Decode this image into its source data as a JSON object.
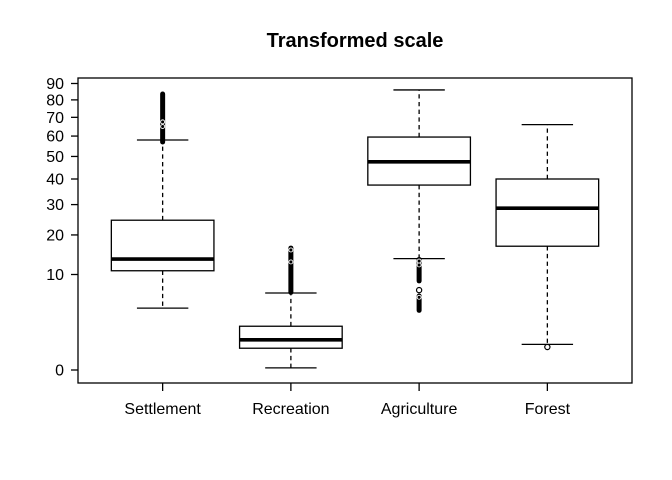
{
  "title": "Transformed scale",
  "chart_data": {
    "type": "boxplot",
    "title": "Transformed scale",
    "subtitle": "",
    "xlabel": "",
    "ylabel": "",
    "categories": [
      "Settlement",
      "Recreation",
      "Agriculture",
      "Forest"
    ],
    "y_scale": "sqrt",
    "y_ticks": [
      0,
      10,
      20,
      30,
      40,
      50,
      60,
      70,
      80,
      90
    ],
    "ylim": [
      0,
      93
    ],
    "grid": false,
    "legend": "none",
    "groups": [
      {
        "name": "Settlement",
        "whisker_low": 4.2,
        "q1": 10.8,
        "median": 13.5,
        "q3": 24.6,
        "whisker_high": 58,
        "outlier_clusters": [
          {
            "from": 57,
            "to": 83.5
          }
        ],
        "outlier_rings": [
          67.5,
          65
        ],
        "outlier_points": []
      },
      {
        "name": "Recreation",
        "whisker_low": 0.005,
        "q1": 0.52,
        "median": 1.0,
        "q3": 2.1,
        "whisker_high": 6.5,
        "outlier_clusters": [
          {
            "from": 6.6,
            "to": 16.3
          }
        ],
        "outlier_rings": [
          15.8,
          12.8
        ],
        "outlier_points": []
      },
      {
        "name": "Agriculture",
        "whisker_low": 13.6,
        "q1": 37.5,
        "median": 47.5,
        "q3": 59.5,
        "whisker_high": 86,
        "outlier_clusters": [
          {
            "from": 8.7,
            "to": 13.4
          },
          {
            "from": 3.9,
            "to": 6.0
          }
        ],
        "outlier_rings": [
          13.0,
          12.1,
          5.8
        ],
        "outlier_points": [
          7.0
        ]
      },
      {
        "name": "Forest",
        "whisker_low": 0.72,
        "q1": 16.8,
        "median": 28.7,
        "q3": 40,
        "whisker_high": 66,
        "outlier_clusters": [],
        "outlier_rings": [],
        "outlier_points": [
          0.58
        ]
      }
    ],
    "colors": {
      "line": "#000000",
      "fill": "#ffffff",
      "background": "#ffffff",
      "text": "#000000"
    }
  }
}
